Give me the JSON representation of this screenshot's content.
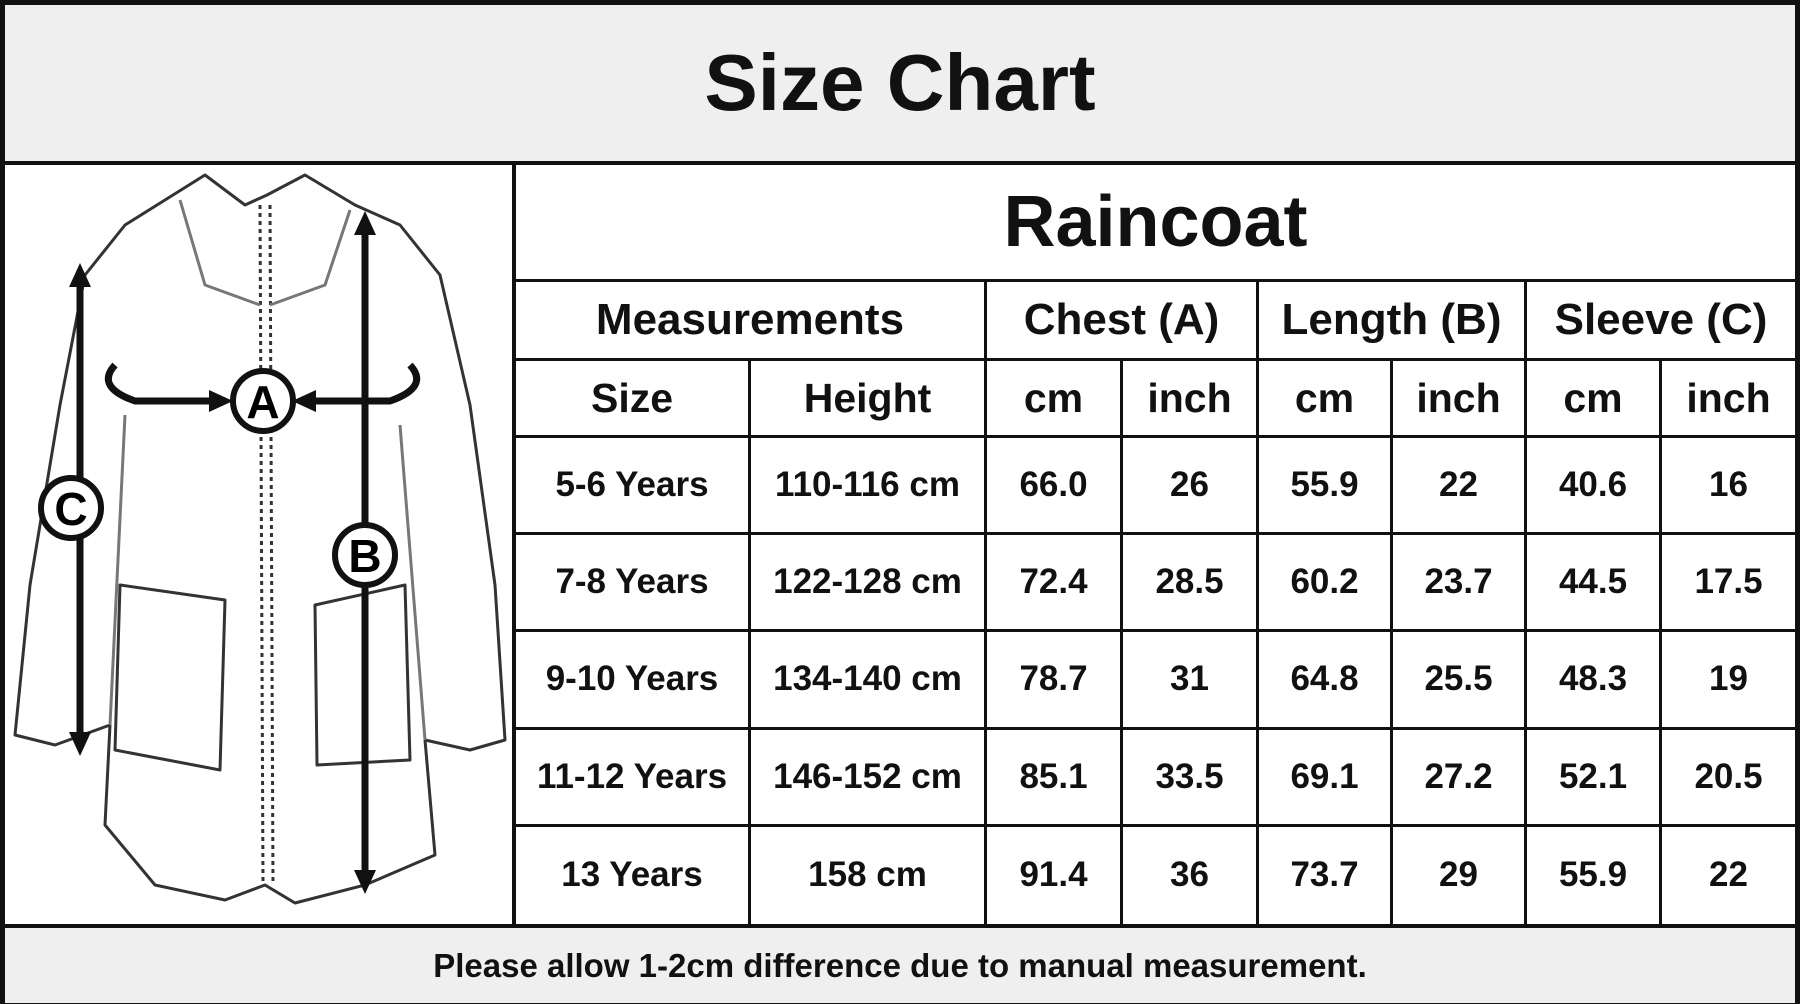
{
  "header": {
    "title": "Size Chart"
  },
  "diagram": {
    "labels": [
      "A",
      "B",
      "C"
    ]
  },
  "table": {
    "title": "Raincoat",
    "groups": [
      "Measurements",
      "Chest (A)",
      "Length (B)",
      "Sleeve (C)"
    ],
    "columns": [
      "Size",
      "Height",
      "cm",
      "inch",
      "cm",
      "inch",
      "cm",
      "inch"
    ],
    "rows": [
      [
        "5-6 Years",
        "110-116 cm",
        "66.0",
        "26",
        "55.9",
        "22",
        "40.6",
        "16"
      ],
      [
        "7-8 Years",
        "122-128 cm",
        "72.4",
        "28.5",
        "60.2",
        "23.7",
        "44.5",
        "17.5"
      ],
      [
        "9-10 Years",
        "134-140 cm",
        "78.7",
        "31",
        "64.8",
        "25.5",
        "48.3",
        "19"
      ],
      [
        "11-12 Years",
        "146-152 cm",
        "85.1",
        "33.5",
        "69.1",
        "27.2",
        "52.1",
        "20.5"
      ],
      [
        "13 Years",
        "158 cm",
        "91.4",
        "36",
        "73.7",
        "29",
        "55.9",
        "22"
      ]
    ]
  },
  "footer": {
    "note": "Please allow 1-2cm difference due to manual measurement."
  }
}
